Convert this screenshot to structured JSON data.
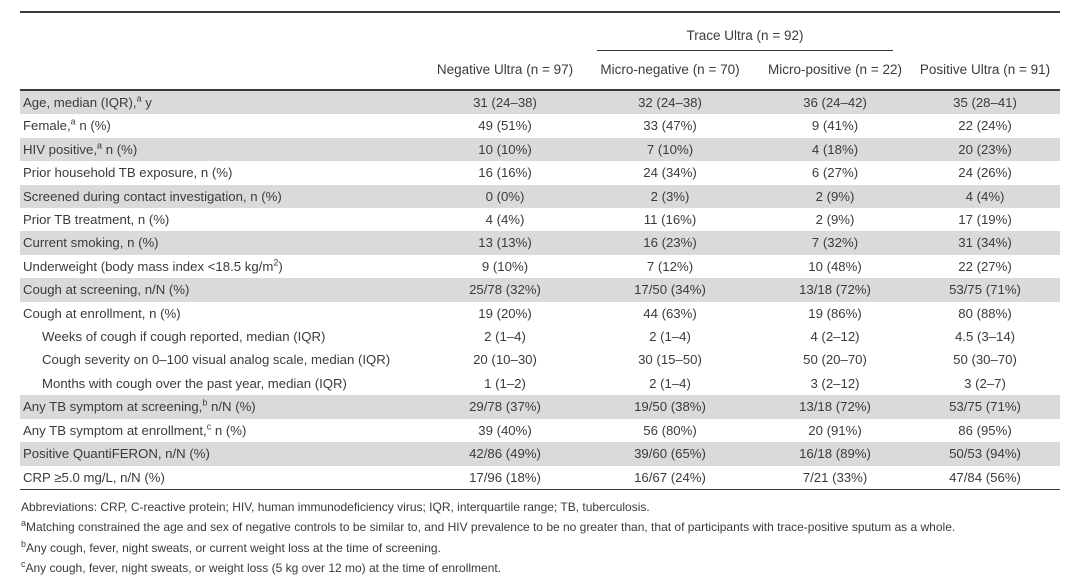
{
  "table": {
    "group_header": "Trace Ultra (n = 92)",
    "columns": [
      "Negative Ultra (n = 97)",
      "Micro-negative (n = 70)",
      "Micro-positive (n = 22)",
      "Positive Ultra (n = 91)"
    ],
    "rows": [
      {
        "label_parts": [
          {
            "t": "Age, median (IQR),"
          },
          {
            "sup": "a"
          },
          {
            "t": " y"
          }
        ],
        "values": [
          "31 (24–38)",
          "32 (24–38)",
          "36 (24–42)",
          "35 (28–41)"
        ],
        "shaded": true,
        "indent": false
      },
      {
        "label_parts": [
          {
            "t": "Female,"
          },
          {
            "sup": "a"
          },
          {
            "t": " n (%)"
          }
        ],
        "values": [
          "49 (51%)",
          "33 (47%)",
          "9 (41%)",
          "22 (24%)"
        ],
        "shaded": false,
        "indent": false
      },
      {
        "label_parts": [
          {
            "t": "HIV positive,"
          },
          {
            "sup": "a"
          },
          {
            "t": " n (%)"
          }
        ],
        "values": [
          "10 (10%)",
          "7 (10%)",
          "4 (18%)",
          "20 (23%)"
        ],
        "shaded": true,
        "indent": false
      },
      {
        "label_parts": [
          {
            "t": "Prior household TB exposure, n (%)"
          }
        ],
        "values": [
          "16 (16%)",
          "24 (34%)",
          "6 (27%)",
          "24 (26%)"
        ],
        "shaded": false,
        "indent": false
      },
      {
        "label_parts": [
          {
            "t": "Screened during contact investigation, n (%)"
          }
        ],
        "values": [
          "0 (0%)",
          "2 (3%)",
          "2 (9%)",
          "4 (4%)"
        ],
        "shaded": true,
        "indent": false
      },
      {
        "label_parts": [
          {
            "t": "Prior TB treatment, n (%)"
          }
        ],
        "values": [
          "4 (4%)",
          "11 (16%)",
          "2 (9%)",
          "17 (19%)"
        ],
        "shaded": false,
        "indent": false
      },
      {
        "label_parts": [
          {
            "t": "Current smoking, n (%)"
          }
        ],
        "values": [
          "13 (13%)",
          "16 (23%)",
          "7 (32%)",
          "31 (34%)"
        ],
        "shaded": true,
        "indent": false
      },
      {
        "label_parts": [
          {
            "t": "Underweight (body mass index <18.5 kg/m"
          },
          {
            "sup": "2"
          },
          {
            "t": ")"
          }
        ],
        "values": [
          "9 (10%)",
          "7 (12%)",
          "10 (48%)",
          "22 (27%)"
        ],
        "shaded": false,
        "indent": false
      },
      {
        "label_parts": [
          {
            "t": "Cough at screening, n/N (%)"
          }
        ],
        "values": [
          "25/78 (32%)",
          "17/50 (34%)",
          "13/18 (72%)",
          "53/75 (71%)"
        ],
        "shaded": true,
        "indent": false
      },
      {
        "label_parts": [
          {
            "t": "Cough at enrollment, n (%)"
          }
        ],
        "values": [
          "19 (20%)",
          "44 (63%)",
          "19 (86%)",
          "80 (88%)"
        ],
        "shaded": false,
        "indent": false
      },
      {
        "label_parts": [
          {
            "t": "Weeks of cough if cough reported, median (IQR)"
          }
        ],
        "values": [
          "2 (1–4)",
          "2 (1–4)",
          "4 (2–12)",
          "4.5 (3–14)"
        ],
        "shaded": false,
        "indent": true
      },
      {
        "label_parts": [
          {
            "t": "Cough severity on 0–100 visual analog scale, median (IQR)"
          }
        ],
        "values": [
          "20 (10–30)",
          "30 (15–50)",
          "50 (20–70)",
          "50 (30–70)"
        ],
        "shaded": false,
        "indent": true
      },
      {
        "label_parts": [
          {
            "t": "Months with cough over the past year, median (IQR)"
          }
        ],
        "values": [
          "1 (1–2)",
          "2 (1–4)",
          "3 (2–12)",
          "3 (2–7)"
        ],
        "shaded": false,
        "indent": true
      },
      {
        "label_parts": [
          {
            "t": "Any TB symptom at screening,"
          },
          {
            "sup": "b"
          },
          {
            "t": " n/N (%)"
          }
        ],
        "values": [
          "29/78 (37%)",
          "19/50 (38%)",
          "13/18 (72%)",
          "53/75 (71%)"
        ],
        "shaded": true,
        "indent": false
      },
      {
        "label_parts": [
          {
            "t": "Any TB symptom at enrollment,"
          },
          {
            "sup": "c"
          },
          {
            "t": " n (%)"
          }
        ],
        "values": [
          "39 (40%)",
          "56 (80%)",
          "20 (91%)",
          "86 (95%)"
        ],
        "shaded": false,
        "indent": false
      },
      {
        "label_parts": [
          {
            "t": "Positive QuantiFERON, n/N (%)"
          }
        ],
        "values": [
          "42/86 (49%)",
          "39/60 (65%)",
          "16/18 (89%)",
          "50/53 (94%)"
        ],
        "shaded": true,
        "indent": false
      },
      {
        "label_parts": [
          {
            "t": "CRP ≥5.0 mg/L, n/N (%)"
          }
        ],
        "values": [
          "17/96 (18%)",
          "16/67 (24%)",
          "7/21 (33%)",
          "47/84 (56%)"
        ],
        "shaded": false,
        "indent": false
      }
    ]
  },
  "footnotes": [
    {
      "parts": [
        {
          "t": "Abbreviations: CRP, C-reactive protein; HIV, human immunodeficiency virus; IQR, interquartile range; TB, tuberculosis."
        }
      ]
    },
    {
      "parts": [
        {
          "sup": "a"
        },
        {
          "t": "Matching constrained the age and sex of negative controls to be similar to, and HIV prevalence to be no greater than, that of participants with trace-positive sputum as a whole."
        }
      ]
    },
    {
      "parts": [
        {
          "sup": "b"
        },
        {
          "t": "Any cough, fever, night sweats, or current weight loss at the time of screening."
        }
      ]
    },
    {
      "parts": [
        {
          "sup": "c"
        },
        {
          "t": "Any cough, fever, night sweats, or weight loss (5 kg over 12 mo) at the time of enrollment."
        }
      ]
    }
  ],
  "colors": {
    "row_shade": "#d8dbda",
    "text": "#3b3b3b",
    "rule": "#3a3a3a",
    "background": "#ffffff"
  }
}
